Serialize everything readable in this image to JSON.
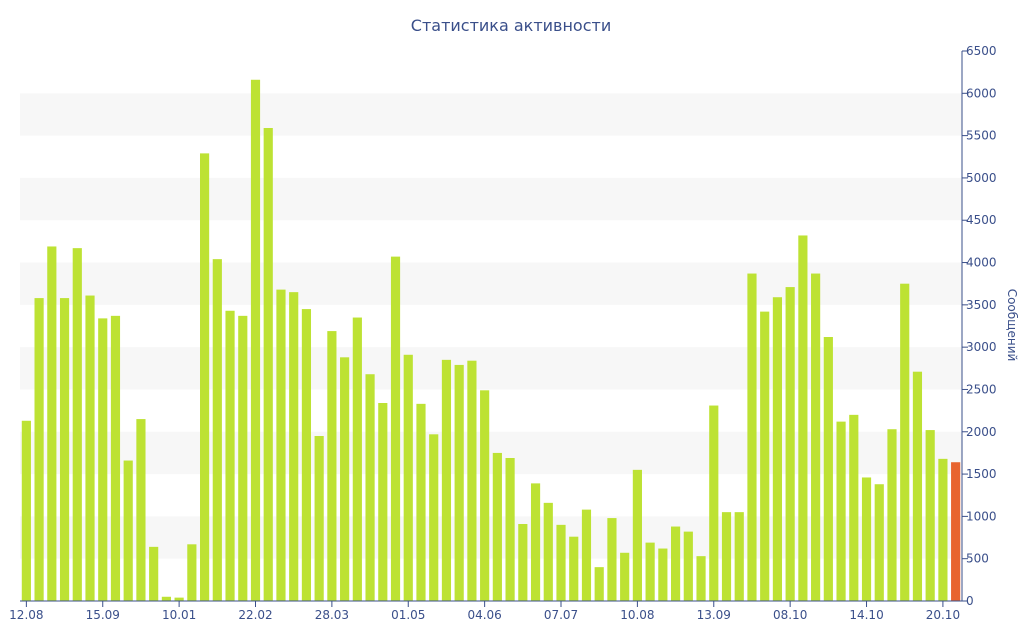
{
  "chart_data": {
    "type": "bar",
    "title": "Статистика активности",
    "xlabel": "",
    "ylabel": "Сообщений",
    "ylim": [
      0,
      6500
    ],
    "yticks": [
      0,
      500,
      1000,
      1500,
      2000,
      2500,
      3000,
      3500,
      4000,
      4500,
      5000,
      5500,
      6000,
      6500
    ],
    "y_axis_position": "right",
    "grid": "alternating-bands",
    "colors": {
      "bar": "#bde233",
      "highlight": "#e8642f",
      "axis": "#3a4f8a",
      "band": "#f7f7f7"
    },
    "x_tick_labels": [
      {
        "index": 0,
        "label": "12.08"
      },
      {
        "index": 6,
        "label": "15.09"
      },
      {
        "index": 12,
        "label": "10.01"
      },
      {
        "index": 18,
        "label": "22.02"
      },
      {
        "index": 24,
        "label": "28.03"
      },
      {
        "index": 30,
        "label": "01.05"
      },
      {
        "index": 36,
        "label": "04.06"
      },
      {
        "index": 42,
        "label": "07.07"
      },
      {
        "index": 48,
        "label": "10.08"
      },
      {
        "index": 54,
        "label": "13.09"
      },
      {
        "index": 60,
        "label": "08.10"
      },
      {
        "index": 66,
        "label": "14.10"
      },
      {
        "index": 72,
        "label": "20.10"
      }
    ],
    "highlight_index": 73,
    "values": [
      2130,
      3580,
      4190,
      3580,
      4170,
      3610,
      3340,
      3370,
      1660,
      2150,
      640,
      50,
      40,
      670,
      5290,
      4040,
      3430,
      3370,
      6160,
      5590,
      3680,
      3650,
      3450,
      1950,
      3190,
      2880,
      3350,
      2680,
      2340,
      4070,
      2910,
      2330,
      1970,
      2850,
      2790,
      2840,
      2490,
      1750,
      1690,
      910,
      1390,
      1160,
      900,
      760,
      1080,
      400,
      980,
      570,
      1550,
      690,
      620,
      880,
      820,
      530,
      2310,
      1050,
      1050,
      3870,
      3420,
      3590,
      3710,
      4320,
      3870,
      3120,
      2120,
      2200,
      1460,
      1380,
      2030,
      3750,
      2710,
      2020,
      1680,
      1640
    ]
  }
}
